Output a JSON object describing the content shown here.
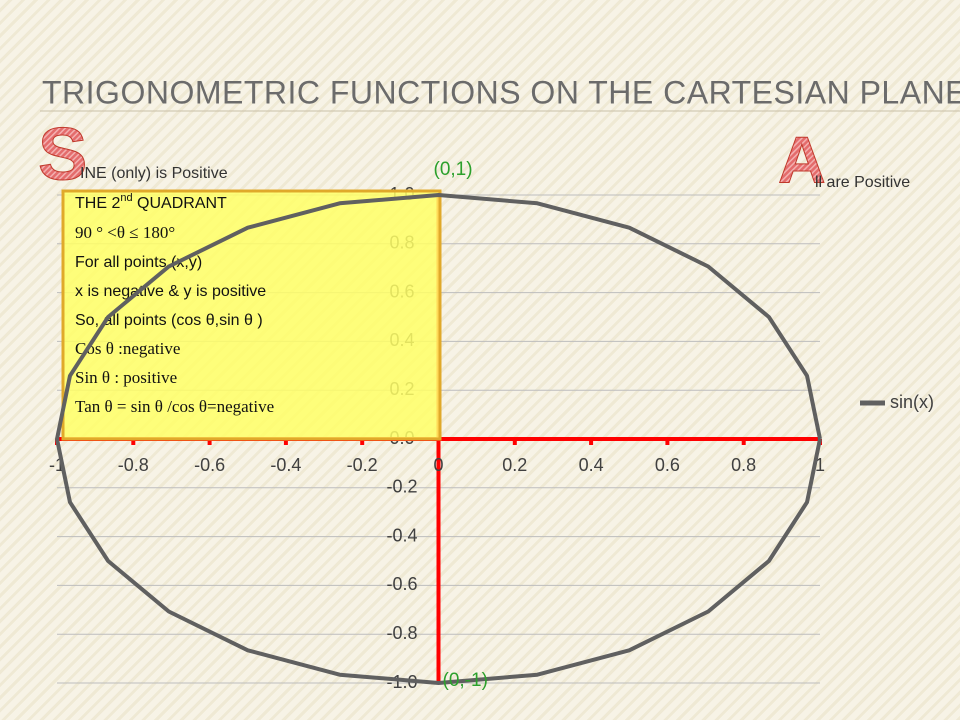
{
  "slide": {
    "title": "TRIGONOMETRIC FUNCTIONS ON THE CARTESIAN PLANE",
    "sine_letter": "S",
    "sine_rest": "INE (only) is Positive",
    "all_letter": "A",
    "all_rest": "ll are Positive"
  },
  "box": {
    "heading": [
      "THE 2",
      "nd",
      " QUADRANT"
    ],
    "lines": [
      {
        "text": "90 ° <θ ≤ 180°",
        "serif": true
      },
      {
        "text": "For all points (x,y)",
        "serif": false
      },
      {
        "text": "x is negative &  y is positive",
        "serif": false
      },
      {
        "text": "So, all points (cos θ,sin θ )",
        "serif": false
      },
      {
        "text": "Cos θ :negative",
        "serif": true
      },
      {
        "text": "Sin θ : positive",
        "serif": true
      },
      {
        "text": "Tan θ = sin θ /cos θ=negative",
        "serif": true
      }
    ]
  },
  "chart_data": {
    "type": "line",
    "xlim": [
      -1,
      1
    ],
    "ylim": [
      -1,
      1
    ],
    "xticks": [
      -1,
      -0.8,
      -0.6,
      -0.4,
      -0.2,
      0,
      0.2,
      0.4,
      0.6,
      0.8,
      1
    ],
    "yticks": [
      {
        "value": 1,
        "label": "1.0"
      },
      0.8,
      0.6,
      0.4,
      0.2,
      {
        "value": 0,
        "label": "0.0"
      },
      -0.2,
      -0.4,
      -0.6,
      -0.8,
      {
        "value": -1,
        "label": "-1.0"
      }
    ],
    "grid": true,
    "legend": "right",
    "annotations": [
      {
        "text": "(0,1)",
        "x": 0,
        "y": 1
      },
      {
        "text": "(0,-1)",
        "x": 0,
        "y": -1
      }
    ],
    "series": [
      {
        "name": "sin(x)",
        "color": "#606060",
        "x": [
          1,
          0.966,
          0.866,
          0.707,
          0.5,
          0.259,
          0,
          -0.259,
          -0.5,
          -0.707,
          -0.866,
          -0.966,
          -1,
          -0.966,
          -0.866,
          -0.707,
          -0.5,
          -0.259,
          0,
          0.259,
          0.5,
          0.707,
          0.866,
          0.966,
          1
        ],
        "values": [
          0,
          0.259,
          0.5,
          0.707,
          0.866,
          0.966,
          1,
          0.966,
          0.866,
          0.707,
          0.5,
          0.259,
          0,
          -0.259,
          -0.5,
          -0.707,
          -0.866,
          -0.966,
          -1,
          -0.966,
          -0.866,
          -0.707,
          -0.5,
          -0.259,
          0
        ]
      }
    ]
  }
}
